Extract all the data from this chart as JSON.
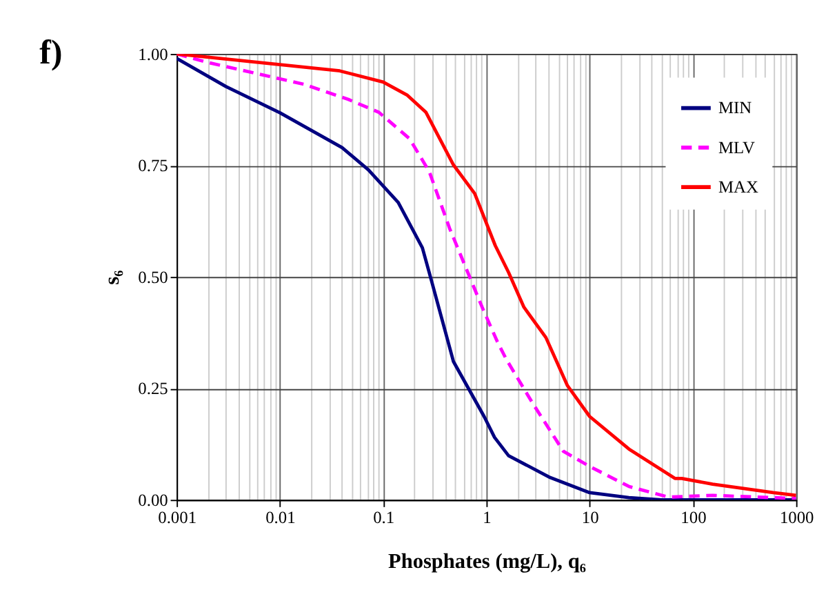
{
  "chart_data": {
    "type": "line",
    "xlabel": "Phosphates (mg/L), q₆",
    "ylabel": "s₆",
    "annotations": [
      "f)"
    ],
    "log": "x",
    "grid": true,
    "legend": "top right",
    "xlim": [
      0.001,
      1000
    ],
    "xticks": [
      0.001,
      {
        "value": 0.002,
        "label": null
      },
      {
        "value": 0.003,
        "label": null
      },
      {
        "value": 0.004,
        "label": null
      },
      {
        "value": 0.005,
        "label": null
      },
      {
        "value": 0.006,
        "label": null
      },
      {
        "value": 0.007,
        "label": null
      },
      {
        "value": 0.008,
        "label": null
      },
      {
        "value": 0.009,
        "label": null
      },
      0.01,
      {
        "value": 0.02,
        "label": null
      },
      {
        "value": 0.03,
        "label": null
      },
      {
        "value": 0.04,
        "label": null
      },
      {
        "value": 0.05,
        "label": null
      },
      {
        "value": 0.06,
        "label": null
      },
      {
        "value": 0.07,
        "label": null
      },
      {
        "value": 0.08,
        "label": null
      },
      {
        "value": 0.09,
        "label": null
      },
      0.1,
      {
        "value": 0.2,
        "label": null
      },
      {
        "value": 0.3,
        "label": null
      },
      {
        "value": 0.4,
        "label": null
      },
      {
        "value": 0.5,
        "label": null
      },
      {
        "value": 0.6,
        "label": null
      },
      {
        "value": 0.7,
        "label": null
      },
      {
        "value": 0.8,
        "label": null
      },
      {
        "value": 0.9,
        "label": null
      },
      1,
      {
        "value": 2,
        "label": null
      },
      {
        "value": 3,
        "label": null
      },
      {
        "value": 4,
        "label": null
      },
      {
        "value": 5,
        "label": null
      },
      {
        "value": 6,
        "label": null
      },
      {
        "value": 7,
        "label": null
      },
      {
        "value": 8,
        "label": null
      },
      {
        "value": 9,
        "label": null
      },
      10,
      {
        "value": 20,
        "label": null
      },
      {
        "value": 30,
        "label": null
      },
      {
        "value": 40,
        "label": null
      },
      {
        "value": 50,
        "label": null
      },
      {
        "value": 60,
        "label": null
      },
      {
        "value": 70,
        "label": null
      },
      {
        "value": 80,
        "label": null
      },
      {
        "value": 90,
        "label": null
      },
      100,
      {
        "value": 200,
        "label": null
      },
      {
        "value": 300,
        "label": null
      },
      {
        "value": 400,
        "label": null
      },
      {
        "value": 500,
        "label": null
      },
      {
        "value": 600,
        "label": null
      },
      {
        "value": 700,
        "label": null
      },
      {
        "value": 800,
        "label": null
      },
      {
        "value": 900,
        "label": null
      },
      1000
    ],
    "ylim": [
      0,
      1
    ],
    "yticks": [
      {
        "value": 0,
        "label": "0.00"
      },
      {
        "value": 0.25,
        "label": "0.25"
      },
      {
        "value": 0.5,
        "label": "0.50"
      },
      {
        "value": 0.75,
        "label": "0.75"
      },
      {
        "value": 1,
        "label": "1.00"
      }
    ],
    "series": [
      {
        "name": "MIN",
        "color": "#000080",
        "line_style": "solid",
        "x": [
          0.001,
          0.003,
          0.01,
          0.04,
          0.072,
          0.14,
          0.24,
          0.295,
          0.48,
          0.95,
          1.2,
          1.64,
          4.15,
          10,
          24,
          50,
          1000
        ],
        "values": [
          0.99,
          0.927,
          0.868,
          0.79,
          0.74,
          0.667,
          0.565,
          0.49,
          0.31,
          0.187,
          0.14,
          0.099,
          0.05,
          0.016,
          0.005,
          0.0,
          0.0
        ]
      },
      {
        "name": "MLV",
        "color": "#ff00ff",
        "line_style": "dashed",
        "x": [
          0.001,
          0.002,
          0.017,
          0.046,
          0.091,
          0.18,
          0.28,
          0.44,
          0.91,
          1.28,
          1.56,
          2.8,
          5.56,
          10,
          24,
          58,
          155,
          1000
        ],
        "values": [
          1.0,
          0.981,
          0.932,
          0.898,
          0.869,
          0.81,
          0.736,
          0.609,
          0.432,
          0.354,
          0.315,
          0.217,
          0.109,
          0.075,
          0.03,
          0.006,
          0.01,
          0.003
        ]
      },
      {
        "name": "MAX",
        "color": "#ff0000",
        "line_style": "solid",
        "x": [
          0.001,
          0.038,
          0.1,
          0.17,
          0.26,
          0.48,
          0.77,
          1.22,
          1.64,
          2.31,
          3.77,
          6.1,
          10,
          24,
          67,
          78,
          155,
          600,
          1000
        ],
        "values": [
          1.0,
          0.962,
          0.937,
          0.908,
          0.869,
          0.751,
          0.687,
          0.57,
          0.51,
          0.432,
          0.364,
          0.256,
          0.187,
          0.114,
          0.048,
          0.048,
          0.035,
          0.016,
          0.01
        ]
      }
    ]
  }
}
